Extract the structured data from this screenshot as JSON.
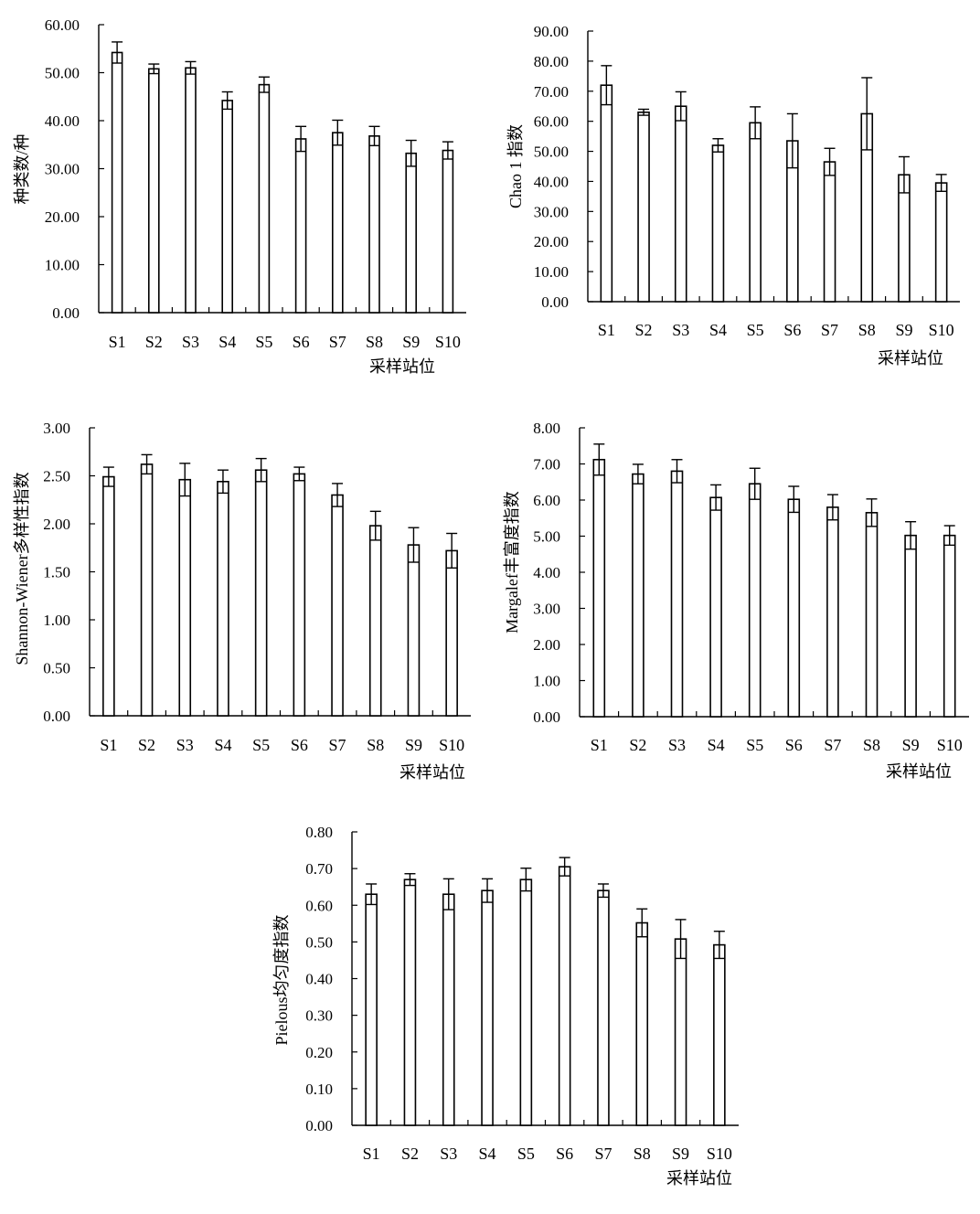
{
  "chart_data": [
    {
      "type": "bar",
      "categories": [
        "S1",
        "S2",
        "S3",
        "S4",
        "S5",
        "S6",
        "S7",
        "S8",
        "S9",
        "S10"
      ],
      "values": [
        54.2,
        50.8,
        51.0,
        44.2,
        47.5,
        36.2,
        37.5,
        36.8,
        33.2,
        33.8
      ],
      "errors": [
        2.2,
        1.0,
        1.3,
        1.8,
        1.6,
        2.6,
        2.6,
        2.0,
        2.7,
        1.8
      ],
      "xlabel": "采样站位",
      "ylabel": "种类数/种",
      "ylim": [
        0,
        60
      ],
      "yticks": [
        "0.00",
        "10.00",
        "20.00",
        "30.00",
        "40.00",
        "50.00",
        "60.00"
      ]
    },
    {
      "type": "bar",
      "categories": [
        "S1",
        "S2",
        "S3",
        "S4",
        "S5",
        "S6",
        "S7",
        "S8",
        "S9",
        "S10"
      ],
      "values": [
        72.0,
        63.0,
        65.0,
        52.0,
        59.5,
        53.5,
        46.5,
        62.5,
        42.2,
        39.5
      ],
      "errors": [
        6.5,
        1.0,
        4.8,
        2.2,
        5.3,
        9.0,
        4.5,
        12.0,
        6.0,
        2.8
      ],
      "xlabel": "采样站位",
      "ylabel": "Chao 1 指数",
      "ylim": [
        0,
        90
      ],
      "yticks": [
        "0.00",
        "10.00",
        "20.00",
        "30.00",
        "40.00",
        "50.00",
        "60.00",
        "70.00",
        "80.00",
        "90.00"
      ]
    },
    {
      "type": "bar",
      "categories": [
        "S1",
        "S2",
        "S3",
        "S4",
        "S5",
        "S6",
        "S7",
        "S8",
        "S9",
        "S10"
      ],
      "values": [
        2.49,
        2.62,
        2.46,
        2.44,
        2.56,
        2.52,
        2.3,
        1.98,
        1.78,
        1.72
      ],
      "errors": [
        0.1,
        0.1,
        0.17,
        0.12,
        0.12,
        0.07,
        0.12,
        0.15,
        0.18,
        0.18
      ],
      "xlabel": "采样站位",
      "ylabel": "Shannon-Wiener多样性指数",
      "ylim": [
        0,
        3
      ],
      "yticks": [
        "0.00",
        "0.50",
        "1.00",
        "1.50",
        "2.00",
        "2.50",
        "3.00"
      ]
    },
    {
      "type": "bar",
      "categories": [
        "S1",
        "S2",
        "S3",
        "S4",
        "S5",
        "S6",
        "S7",
        "S8",
        "S9",
        "S10"
      ],
      "values": [
        7.12,
        6.72,
        6.8,
        6.07,
        6.45,
        6.02,
        5.8,
        5.65,
        5.02,
        5.02
      ],
      "errors": [
        0.43,
        0.27,
        0.32,
        0.35,
        0.43,
        0.36,
        0.35,
        0.38,
        0.38,
        0.27
      ],
      "xlabel": "采样站位",
      "ylabel": "Margalef丰富度指数",
      "ylim": [
        0,
        8
      ],
      "yticks": [
        "0.00",
        "1.00",
        "2.00",
        "3.00",
        "4.00",
        "5.00",
        "6.00",
        "7.00",
        "8.00"
      ]
    },
    {
      "type": "bar",
      "categories": [
        "S1",
        "S2",
        "S3",
        "S4",
        "S5",
        "S6",
        "S7",
        "S8",
        "S9",
        "S10"
      ],
      "values": [
        0.63,
        0.67,
        0.63,
        0.64,
        0.67,
        0.705,
        0.64,
        0.552,
        0.508,
        0.492
      ],
      "errors": [
        0.028,
        0.016,
        0.042,
        0.032,
        0.031,
        0.025,
        0.018,
        0.038,
        0.053,
        0.037
      ],
      "xlabel": "采样站位",
      "ylabel": "Pielous均匀度指数",
      "ylim": [
        0,
        0.8
      ],
      "yticks": [
        "0.00",
        "0.10",
        "0.20",
        "0.30",
        "0.40",
        "0.50",
        "0.60",
        "0.70",
        "0.80"
      ]
    }
  ]
}
